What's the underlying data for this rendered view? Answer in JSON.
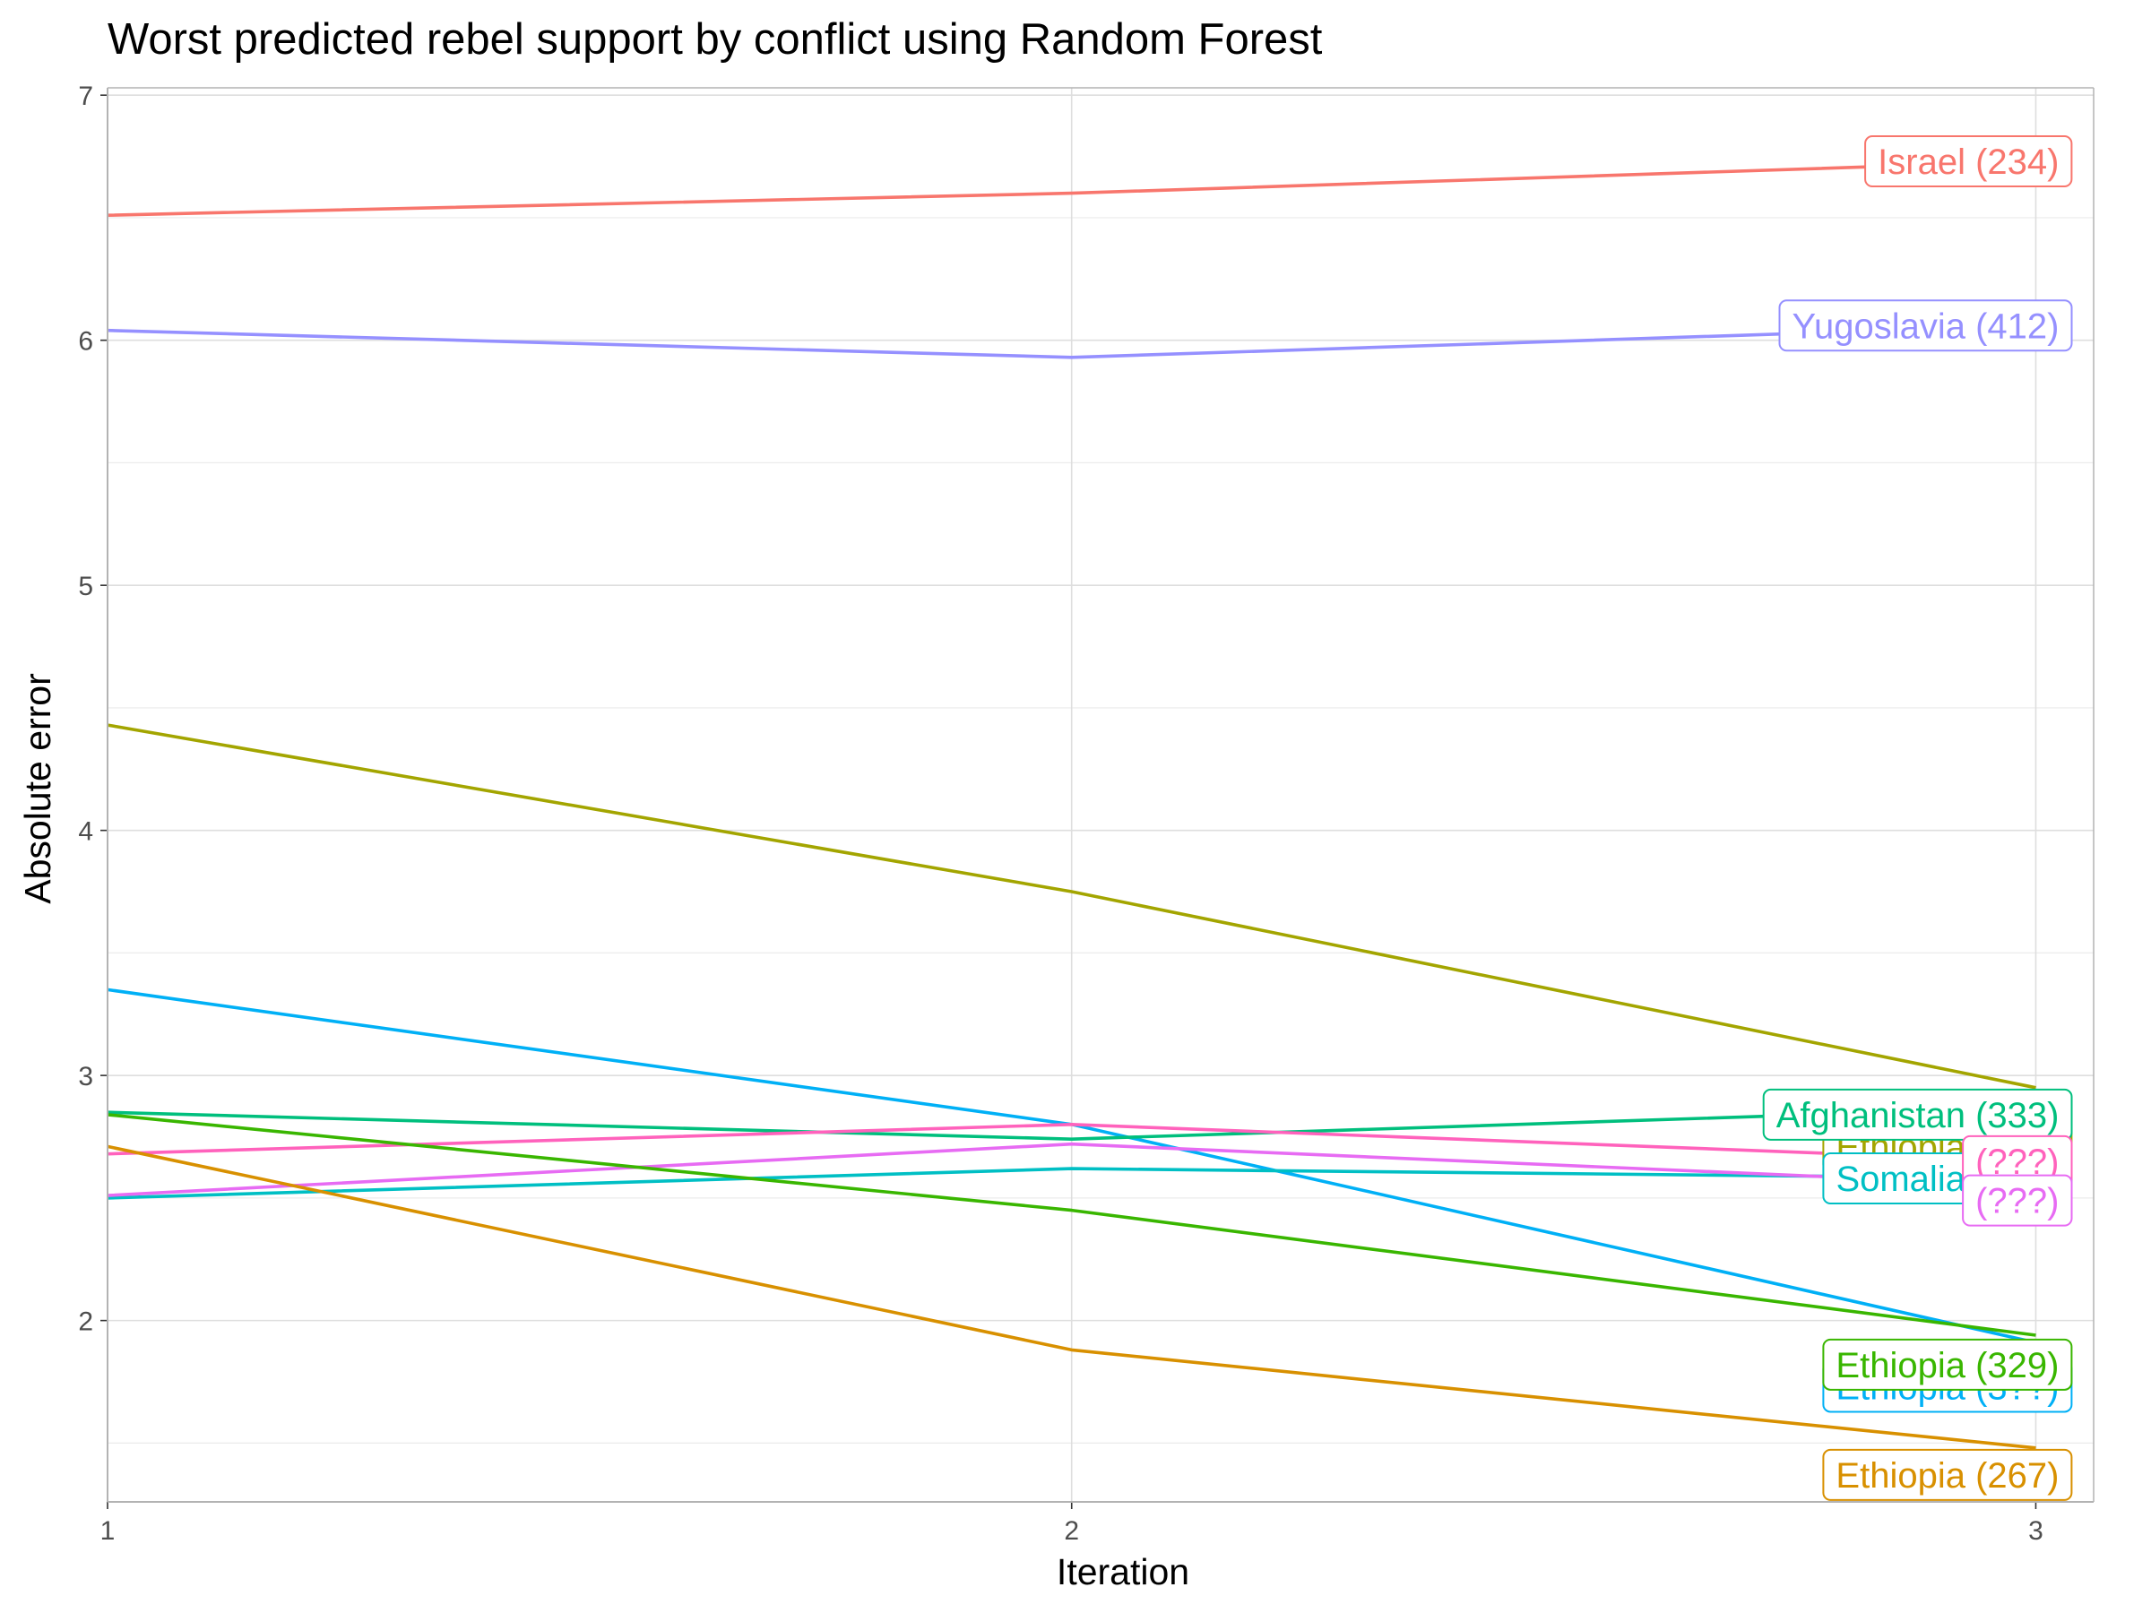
{
  "chart_data": {
    "type": "line",
    "title": "Worst predicted rebel support by conflict using Random Forest",
    "xlabel": "Iteration",
    "ylabel": "Absolute error",
    "x": [
      1,
      2,
      3
    ],
    "x_ticks": [
      "1",
      "2",
      "3"
    ],
    "y_ticks": [
      "2",
      "3",
      "4",
      "5",
      "6",
      "7"
    ],
    "xlim": [
      1,
      3.06
    ],
    "ylim": [
      1.26,
      7.03
    ],
    "grid": true,
    "legend": "none",
    "series": [
      {
        "name": "Israel (234)",
        "color": "#F8766D",
        "values": [
          6.51,
          6.6,
          6.73
        ],
        "label_y": 6.73
      },
      {
        "name": "Yugoslavia (412)",
        "color": "#9590FF",
        "values": [
          6.04,
          5.93,
          6.06
        ],
        "label_y": 6.06
      },
      {
        "name": "Ethiopia (27?)",
        "color": "#A3A500",
        "values": [
          4.43,
          3.75,
          2.95
        ],
        "label_y": 2.71
      },
      {
        "name": "Ethiopia (3??)",
        "color": "#00B0F6",
        "values": [
          3.35,
          2.8,
          1.91
        ],
        "label_y": 1.73
      },
      {
        "name": "Afghanistan (333)",
        "color": "#00BF7D",
        "values": [
          2.85,
          2.74,
          2.87
        ],
        "label_y": 2.84
      },
      {
        "name": "Somalia (337)",
        "color": "#00BFC4",
        "values": [
          2.5,
          2.62,
          2.58
        ],
        "label_y": 2.58
      },
      {
        "name": "(???)",
        "color": "#FF62BC",
        "values": [
          2.68,
          2.8,
          2.65
        ],
        "label_y": 2.65
      },
      {
        "name": "(???)",
        "color": "#E76BF3",
        "values": [
          2.51,
          2.72,
          2.55
        ],
        "label_y": 2.49
      },
      {
        "name": "Ethiopia (329)",
        "color": "#39B600",
        "values": [
          2.84,
          2.45,
          1.94
        ],
        "label_y": 1.82
      },
      {
        "name": "Ethiopia (267)",
        "color": "#D89000",
        "values": [
          2.71,
          1.88,
          1.48
        ],
        "label_y": 1.37
      }
    ]
  }
}
